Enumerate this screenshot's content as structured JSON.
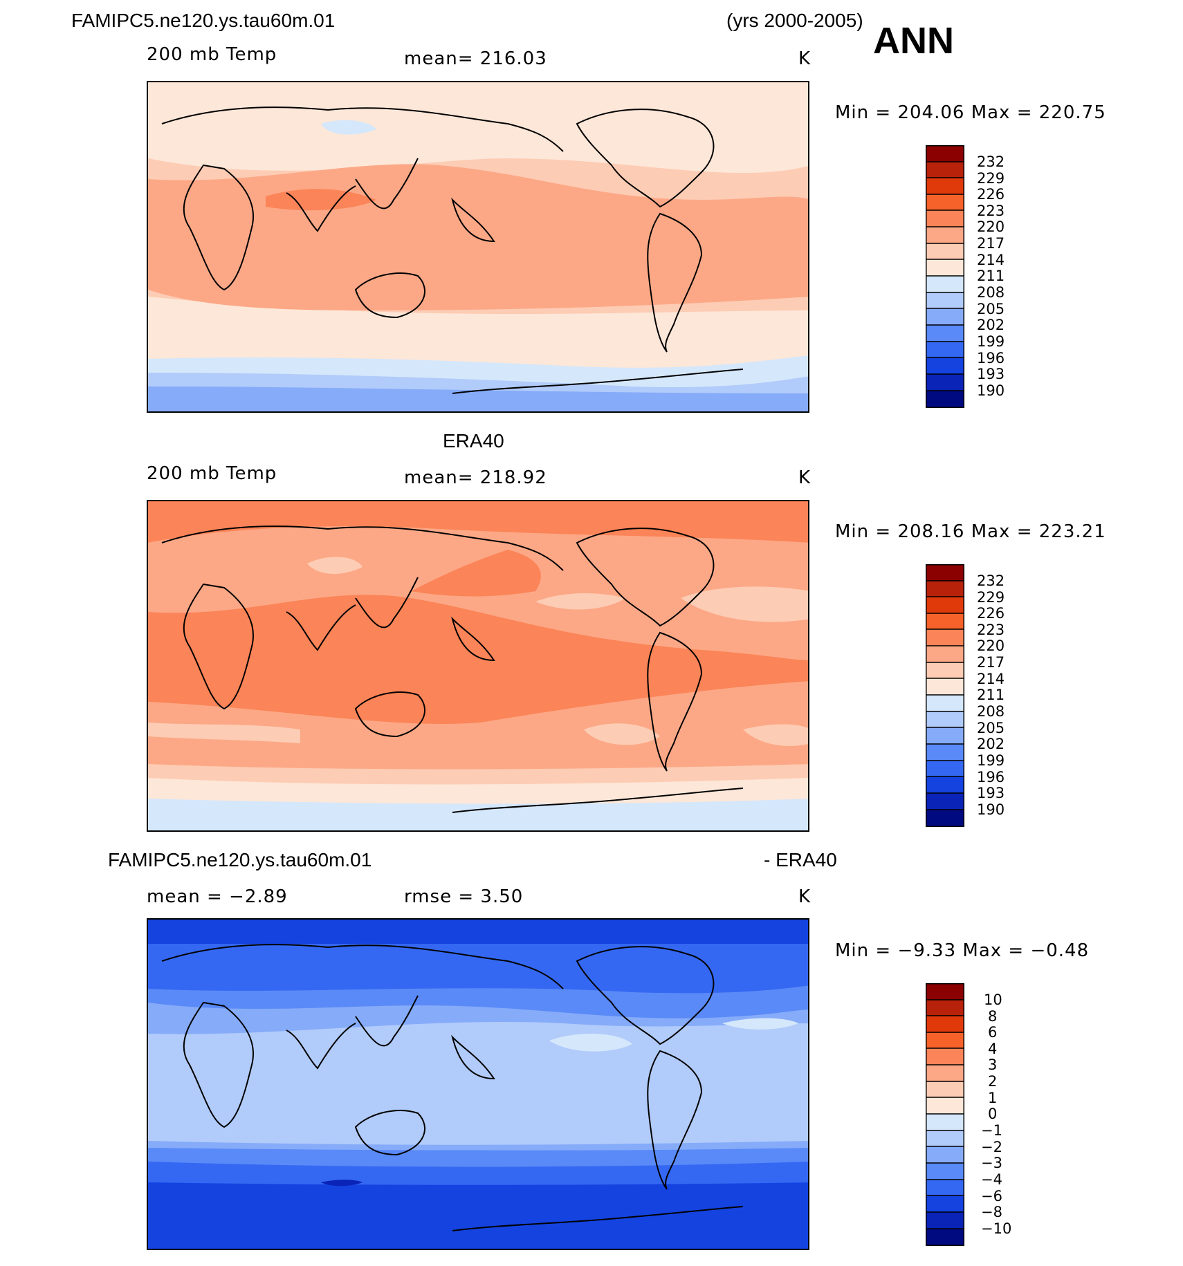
{
  "header": {
    "case_name": "FAMIPC5.ne120.ys.tau60m.01",
    "years": "(yrs 2000-2005)",
    "season": "ANN"
  },
  "panels": [
    {
      "id": "model",
      "title": "",
      "left_label": "200 mb Temp",
      "center_label": "mean=  216.03",
      "units": "K",
      "minmax": "Min  =  204.06  Max  =  220.75",
      "colorbar_labels": [
        "232",
        "229",
        "226",
        "223",
        "220",
        "217",
        "214",
        "211",
        "208",
        "205",
        "202",
        "199",
        "196",
        "193",
        "190"
      ]
    },
    {
      "id": "obs",
      "title": "ERA40",
      "left_label": "200 mb Temp",
      "center_label": "mean=  218.92",
      "units": "K",
      "minmax": "Min  =  208.16  Max  =  223.21",
      "colorbar_labels": [
        "232",
        "229",
        "226",
        "223",
        "220",
        "217",
        "214",
        "211",
        "208",
        "205",
        "202",
        "199",
        "196",
        "193",
        "190"
      ]
    },
    {
      "id": "diff",
      "title_left": "FAMIPC5.ne120.ys.tau60m.01",
      "title_right": "- ERA40",
      "left_label": "mean  =   −2.89",
      "center_label": "rmse  =     3.50",
      "units": "K",
      "minmax": "Min  =    −9.33  Max  =    −0.48",
      "colorbar_labels": [
        "10",
        "8",
        "6",
        "4",
        "3",
        "2",
        "1",
        "0",
        "−1",
        "−2",
        "−3",
        "−4",
        "−6",
        "−8",
        "−10"
      ]
    }
  ],
  "colors": {
    "c232": "#8b0000",
    "c229": "#b8210a",
    "c226": "#e03a0a",
    "c223": "#f7622a",
    "c220": "#fb8458",
    "c217": "#fca886",
    "c214": "#fdccb4",
    "c211": "#fde7d8",
    "c208": "#d5e7fb",
    "c205": "#b1cbfa",
    "c202": "#86abf9",
    "c199": "#5a8af7",
    "c196": "#3568f2",
    "c193": "#1443e0",
    "c190": "#0a24b8",
    "cmin": "#000a80"
  }
}
